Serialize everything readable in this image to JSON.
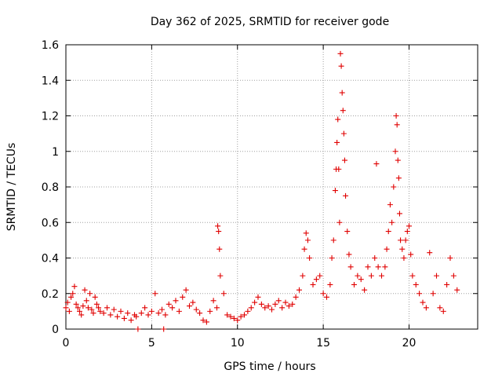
{
  "chart_data": {
    "type": "scatter",
    "title": "Day 362 of 2025, SRMTID for receiver gode",
    "xlabel": "GPS time / hours",
    "ylabel": "SRMTID / TECUs",
    "xlim": [
      0,
      24
    ],
    "ylim": [
      0,
      1.6
    ],
    "xticks": [
      0,
      5,
      10,
      15,
      20
    ],
    "xtick_labels": [
      "0",
      "5",
      "10",
      "15",
      "20"
    ],
    "yticks": [
      0,
      0.2,
      0.4,
      0.6,
      0.8,
      1,
      1.2,
      1.4,
      1.6
    ],
    "ytick_labels": [
      "0",
      "0.2",
      "0.4",
      "0.6",
      "0.8",
      "1",
      "1.2",
      "1.4",
      "1.6"
    ],
    "grid": true,
    "marker": "plus",
    "series_color": "#e00000",
    "series": [
      {
        "name": "SRMTID",
        "x": [
          0.0,
          0.1,
          0.2,
          0.3,
          0.4,
          0.5,
          0.6,
          0.7,
          0.8,
          0.9,
          1.0,
          1.1,
          1.2,
          1.3,
          1.4,
          1.5,
          1.6,
          1.7,
          1.8,
          1.9,
          2.0,
          2.2,
          2.4,
          2.6,
          2.8,
          3.0,
          3.2,
          3.4,
          3.6,
          3.8,
          4.0,
          4.1,
          4.2,
          4.4,
          4.6,
          4.8,
          5.0,
          5.2,
          5.4,
          5.6,
          5.7,
          5.8,
          6.0,
          6.2,
          6.4,
          6.6,
          6.8,
          7.0,
          7.2,
          7.4,
          7.6,
          7.8,
          8.0,
          8.2,
          8.4,
          8.6,
          8.8,
          8.85,
          8.9,
          8.95,
          9.0,
          9.2,
          9.4,
          9.6,
          9.8,
          10.0,
          10.2,
          10.4,
          10.6,
          10.8,
          11.0,
          11.2,
          11.4,
          11.6,
          11.8,
          12.0,
          12.2,
          12.4,
          12.6,
          12.8,
          13.0,
          13.2,
          13.4,
          13.6,
          13.8,
          13.9,
          14.0,
          14.1,
          14.2,
          14.4,
          14.6,
          14.8,
          15.0,
          15.2,
          15.4,
          15.5,
          15.6,
          15.7,
          15.75,
          15.8,
          15.85,
          15.9,
          15.95,
          16.0,
          16.05,
          16.1,
          16.15,
          16.2,
          16.25,
          16.3,
          16.4,
          16.5,
          16.6,
          16.8,
          17.0,
          17.2,
          17.4,
          17.6,
          17.8,
          18.0,
          18.1,
          18.2,
          18.4,
          18.6,
          18.7,
          18.8,
          18.9,
          19.0,
          19.1,
          19.2,
          19.25,
          19.3,
          19.35,
          19.4,
          19.45,
          19.5,
          19.6,
          19.7,
          19.8,
          19.9,
          20.0,
          20.1,
          20.2,
          20.4,
          20.6,
          20.8,
          21.0,
          21.2,
          21.4,
          21.6,
          21.8,
          22.0,
          22.2,
          22.4,
          22.6,
          22.8
        ],
        "y": [
          0.12,
          0.15,
          0.1,
          0.18,
          0.2,
          0.24,
          0.14,
          0.12,
          0.1,
          0.08,
          0.13,
          0.22,
          0.16,
          0.12,
          0.2,
          0.11,
          0.09,
          0.18,
          0.14,
          0.12,
          0.1,
          0.09,
          0.12,
          0.08,
          0.11,
          0.07,
          0.1,
          0.06,
          0.09,
          0.05,
          0.08,
          0.07,
          0.0,
          0.09,
          0.12,
          0.08,
          0.1,
          0.2,
          0.09,
          0.11,
          0.0,
          0.08,
          0.14,
          0.12,
          0.16,
          0.1,
          0.18,
          0.22,
          0.13,
          0.15,
          0.11,
          0.09,
          0.05,
          0.04,
          0.1,
          0.16,
          0.12,
          0.58,
          0.55,
          0.45,
          0.3,
          0.2,
          0.08,
          0.07,
          0.06,
          0.05,
          0.07,
          0.08,
          0.1,
          0.12,
          0.15,
          0.18,
          0.14,
          0.12,
          0.13,
          0.11,
          0.14,
          0.16,
          0.12,
          0.15,
          0.13,
          0.14,
          0.18,
          0.22,
          0.3,
          0.45,
          0.54,
          0.5,
          0.4,
          0.25,
          0.28,
          0.3,
          0.2,
          0.18,
          0.25,
          0.4,
          0.5,
          0.78,
          0.9,
          1.05,
          1.18,
          0.9,
          0.6,
          1.55,
          1.48,
          1.33,
          1.23,
          1.1,
          0.95,
          0.75,
          0.55,
          0.42,
          0.35,
          0.25,
          0.3,
          0.28,
          0.22,
          0.35,
          0.3,
          0.4,
          0.93,
          0.35,
          0.3,
          0.35,
          0.45,
          0.55,
          0.7,
          0.6,
          0.8,
          1.0,
          1.2,
          1.15,
          0.95,
          0.85,
          0.65,
          0.5,
          0.45,
          0.4,
          0.5,
          0.55,
          0.58,
          0.42,
          0.3,
          0.25,
          0.2,
          0.15,
          0.12,
          0.43,
          0.2,
          0.3,
          0.12,
          0.1,
          0.25,
          0.4,
          0.3,
          0.22
        ]
      }
    ]
  }
}
